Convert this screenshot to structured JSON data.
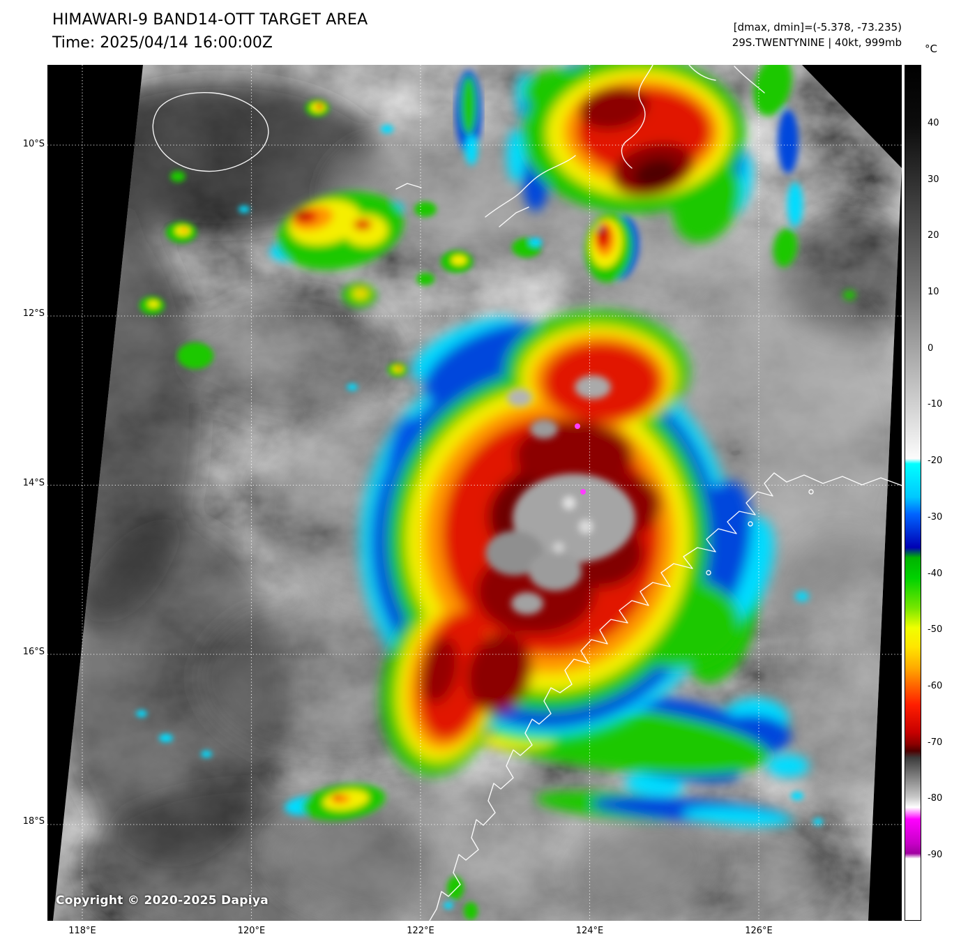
{
  "header": {
    "title": "HIMAWARI-9 BAND14-OTT TARGET AREA",
    "time_line": "Time: 2025/04/14 16:00:00Z",
    "dmax_dmin_line": "[dmax, dmin]=(-5.378, -73.235)",
    "storm_line": "29S.TWENTYNINE | 40kt, 999mb"
  },
  "storm": {
    "id": "29S",
    "name": "TWENTYNINE",
    "intensity": "40kt",
    "pressure": "999mb",
    "dmax": -5.378,
    "dmin": -73.235
  },
  "colorbar": {
    "unit_label": "°C",
    "tick_labels": [
      "40",
      "30",
      "20",
      "10",
      "0",
      "-10",
      "-20",
      "-30",
      "-40",
      "-50",
      "-60",
      "-70",
      "-80",
      "-90"
    ],
    "colormap": [
      {
        "temp": 40,
        "color": "#000000"
      },
      {
        "temp": -20,
        "color": "#ffffff"
      },
      {
        "temp": -22,
        "color": "#00ffff"
      },
      {
        "temp": -30,
        "color": "#0064ff"
      },
      {
        "temp": -35,
        "color": "#0000b4"
      },
      {
        "temp": -40,
        "color": "#00d200"
      },
      {
        "temp": -50,
        "color": "#ffe600"
      },
      {
        "temp": -58,
        "color": "#ffaa00"
      },
      {
        "temp": -63,
        "color": "#ff1e00"
      },
      {
        "temp": -70,
        "color": "#8c0000"
      },
      {
        "temp": -76,
        "color": "#3c3c3c"
      },
      {
        "temp": -82,
        "color": "#ffffff"
      },
      {
        "temp": -88,
        "color": "#ff00ff"
      },
      {
        "temp": -95,
        "color": "#ffffff"
      }
    ]
  },
  "axes": {
    "lat_tick_labels": [
      "10°S",
      "12°S",
      "14°S",
      "16°S",
      "18°S"
    ],
    "lon_tick_labels": [
      "118°E",
      "120°E",
      "122°E",
      "124°E",
      "126°E"
    ]
  },
  "map_overlay": {
    "copyright": "Copyright © 2020-2025 Dapiya"
  }
}
